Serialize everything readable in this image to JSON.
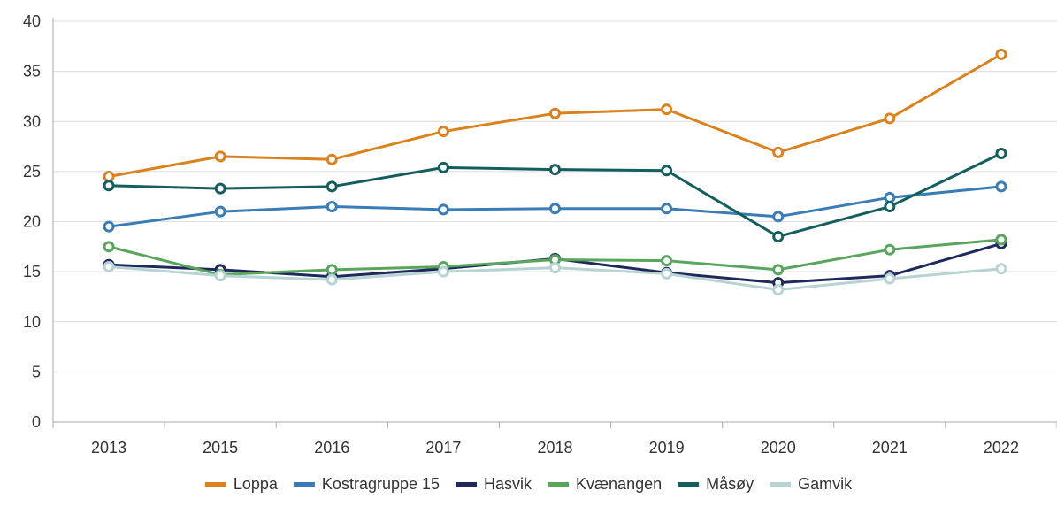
{
  "chart_data": {
    "type": "line",
    "categories": [
      "2013",
      "2015",
      "2016",
      "2017",
      "2018",
      "2019",
      "2020",
      "2021",
      "2022"
    ],
    "ylim": [
      0,
      40
    ],
    "yticks": [
      0,
      5,
      10,
      15,
      20,
      25,
      30,
      35,
      40
    ],
    "grid": true,
    "legend_position": "bottom",
    "series": [
      {
        "name": "Loppa",
        "color": "#d9821e",
        "values": [
          24.5,
          26.5,
          26.2,
          29.0,
          30.8,
          31.2,
          26.9,
          30.3,
          36.7
        ]
      },
      {
        "name": "Kostragruppe 15",
        "color": "#3a7db5",
        "values": [
          19.5,
          21.0,
          21.5,
          21.2,
          21.3,
          21.3,
          20.5,
          22.4,
          23.5
        ]
      },
      {
        "name": "Hasvik",
        "color": "#1f2a5c",
        "values": [
          15.7,
          15.2,
          14.5,
          15.3,
          16.3,
          14.9,
          13.9,
          14.6,
          17.8
        ]
      },
      {
        "name": "Kvænangen",
        "color": "#5aa55e",
        "values": [
          17.5,
          14.7,
          15.2,
          15.5,
          16.2,
          16.1,
          15.2,
          17.2,
          18.2
        ]
      },
      {
        "name": "Måsøy",
        "color": "#155e5e",
        "values": [
          23.6,
          23.3,
          23.5,
          25.4,
          25.2,
          25.1,
          18.5,
          21.5,
          26.8
        ]
      },
      {
        "name": "Gamvik",
        "color": "#b8d3d3",
        "values": [
          15.5,
          14.6,
          14.2,
          15.0,
          15.4,
          14.8,
          13.2,
          14.3,
          15.3
        ]
      }
    ]
  }
}
